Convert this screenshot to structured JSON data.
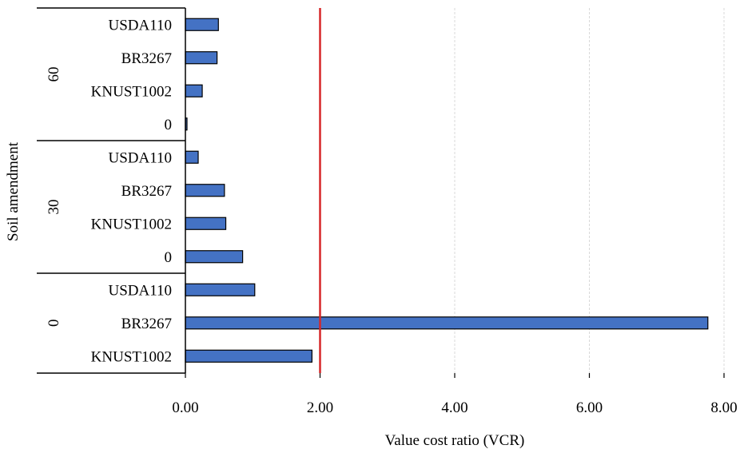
{
  "chart_data": {
    "type": "bar",
    "orientation": "horizontal",
    "xlabel": "Value cost ratio (VCR)",
    "ylabel": "Soil amendment",
    "xlim": [
      0,
      8
    ],
    "xticks": [
      "0.00",
      "2.00",
      "4.00",
      "6.00",
      "8.00"
    ],
    "reference_line": {
      "x": 2.0,
      "color": "#d62728"
    },
    "bar_color": "#4472c4",
    "grid": "vertical dashed",
    "groups": [
      {
        "label": "60",
        "categories": [
          "USDA110",
          "BR3267",
          "KNUST1002",
          "0"
        ],
        "values": [
          0.49,
          0.47,
          0.25,
          0.02
        ]
      },
      {
        "label": "30",
        "categories": [
          "USDA110",
          "BR3267",
          "KNUST1002",
          "0"
        ],
        "values": [
          0.19,
          0.58,
          0.6,
          0.85
        ]
      },
      {
        "label": "0",
        "categories": [
          "USDA110",
          "BR3267",
          "KNUST1002"
        ],
        "values": [
          1.03,
          7.76,
          1.88
        ]
      }
    ]
  }
}
